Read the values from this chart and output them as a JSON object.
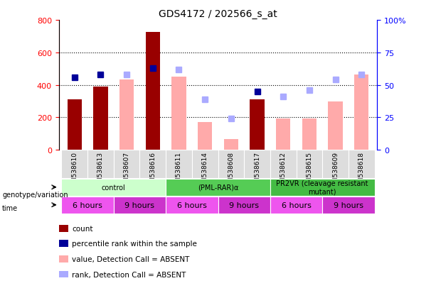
{
  "title": "GDS4172 / 202566_s_at",
  "samples": [
    "GSM538610",
    "GSM538613",
    "GSM538607",
    "GSM538616",
    "GSM538611",
    "GSM538614",
    "GSM538608",
    "GSM538617",
    "GSM538612",
    "GSM538615",
    "GSM538609",
    "GSM538618"
  ],
  "count_values": [
    310,
    390,
    null,
    725,
    null,
    null,
    null,
    310,
    null,
    null,
    null,
    null
  ],
  "count_absent_values": [
    null,
    null,
    435,
    null,
    450,
    170,
    65,
    null,
    195,
    195,
    300,
    465
  ],
  "rank_present_values": [
    56,
    58,
    null,
    63,
    null,
    null,
    null,
    45,
    null,
    null,
    null,
    null
  ],
  "rank_absent_values": [
    null,
    null,
    58,
    null,
    62,
    39,
    24,
    null,
    41,
    46,
    54,
    58
  ],
  "count_color": "#990000",
  "count_absent_color": "#ffaaaa",
  "rank_present_color": "#000099",
  "rank_absent_color": "#aaaaff",
  "ylim_left": [
    0,
    800
  ],
  "ylim_right": [
    0,
    100
  ],
  "yticks_left": [
    0,
    200,
    400,
    600,
    800
  ],
  "ytick_labels_left": [
    "0",
    "200",
    "400",
    "600",
    "800"
  ],
  "yticks_right": [
    0,
    25,
    50,
    75,
    100
  ],
  "ytick_labels_right": [
    "0",
    "25",
    "50",
    "75",
    "100%"
  ],
  "grid_lines": [
    200,
    400,
    600
  ],
  "genotype_groups": [
    {
      "label": "control",
      "start": 0,
      "end": 4,
      "color": "#ccffcc"
    },
    {
      "label": "(PML-RAR)α",
      "start": 4,
      "end": 8,
      "color": "#55cc55"
    },
    {
      "label": "PR2VR (cleavage resistant\nmutant)",
      "start": 8,
      "end": 12,
      "color": "#44bb44"
    }
  ],
  "time_groups": [
    {
      "label": "6 hours",
      "start": 0,
      "end": 2,
      "color": "#ee55ee"
    },
    {
      "label": "9 hours",
      "start": 2,
      "end": 4,
      "color": "#cc33cc"
    },
    {
      "label": "6 hours",
      "start": 4,
      "end": 6,
      "color": "#ee55ee"
    },
    {
      "label": "9 hours",
      "start": 6,
      "end": 8,
      "color": "#cc33cc"
    },
    {
      "label": "6 hours",
      "start": 8,
      "end": 10,
      "color": "#ee55ee"
    },
    {
      "label": "9 hours",
      "start": 10,
      "end": 12,
      "color": "#cc33cc"
    }
  ],
  "legend_items": [
    {
      "label": "count",
      "color": "#990000",
      "marker": "s"
    },
    {
      "label": "percentile rank within the sample",
      "color": "#000099",
      "marker": "s"
    },
    {
      "label": "value, Detection Call = ABSENT",
      "color": "#ffaaaa",
      "marker": "s"
    },
    {
      "label": "rank, Detection Call = ABSENT",
      "color": "#aaaaff",
      "marker": "s"
    }
  ],
  "bar_width": 0.55,
  "marker_size": 6,
  "sample_box_color": "#dddddd",
  "left_label_genotype": "genotype/variation",
  "left_label_time": "time"
}
